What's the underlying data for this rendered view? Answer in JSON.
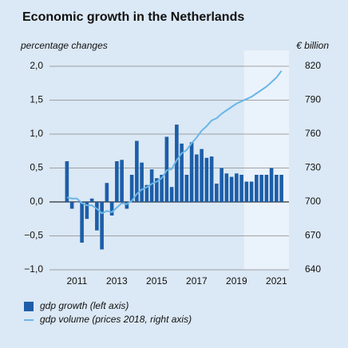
{
  "chart_data": {
    "type": "bar_line",
    "title": "Economic growth in the Netherlands",
    "y_label": "percentage changes",
    "y2_label": "€ billion",
    "categories": [
      null,
      null,
      null,
      null,
      null,
      "2011",
      null,
      null,
      null,
      null,
      null,
      null,
      null,
      "2013",
      null,
      null,
      null,
      null,
      null,
      null,
      null,
      "2015",
      null,
      null,
      null,
      null,
      null,
      null,
      null,
      "2017",
      null,
      null,
      null,
      null,
      null,
      null,
      null,
      "2019",
      null,
      null,
      null,
      null,
      null,
      null,
      null,
      "2021",
      null,
      null
    ],
    "series": [
      {
        "name": "gdp growth (left axis)",
        "type": "bar",
        "color": "#1c5ea8",
        "values": [
          null,
          null,
          null,
          0.6,
          -0.1,
          0.0,
          -0.6,
          -0.25,
          0.05,
          -0.42,
          -0.7,
          0.28,
          -0.2,
          0.6,
          0.62,
          -0.1,
          0.4,
          0.9,
          0.58,
          0.25,
          0.48,
          0.35,
          0.4,
          0.96,
          0.22,
          1.14,
          0.86,
          0.4,
          0.88,
          0.7,
          0.78,
          0.65,
          0.67,
          0.27,
          0.5,
          0.42,
          0.37,
          0.42,
          0.4,
          0.3,
          0.3,
          0.4,
          0.4,
          0.4,
          0.5,
          0.4,
          0.4,
          null
        ]
      },
      {
        "name": "gdp volume (prices 2018, right axis)",
        "type": "line",
        "axis": "y2",
        "color": "#6ab7e6",
        "values": [
          null,
          null,
          null,
          704,
          703,
          703,
          699,
          697,
          697,
          694,
          690,
          692,
          691,
          695,
          699,
          698,
          701,
          707,
          711,
          713,
          716,
          718,
          721,
          728,
          729,
          737,
          743,
          746,
          752,
          757,
          763,
          767,
          772,
          774,
          778,
          781,
          784,
          787,
          789,
          791,
          793,
          796,
          799,
          802,
          806,
          810,
          816,
          null
        ]
      }
    ],
    "ylim": [
      -1.0,
      2.0
    ],
    "yticks": [
      {
        "value": -1.0,
        "label": "−1,0"
      },
      {
        "value": -0.5,
        "label": "−0,5"
      },
      {
        "value": 0.0,
        "label": "0,0"
      },
      {
        "value": 0.5,
        "label": "0,5"
      },
      {
        "value": 1.0,
        "label": "1,0"
      },
      {
        "value": 1.5,
        "label": "1,5"
      },
      {
        "value": 2.0,
        "label": "2,0"
      }
    ],
    "y2lim": [
      640,
      820
    ],
    "y2ticks": [
      640,
      670,
      700,
      730,
      760,
      790,
      820
    ],
    "grid": true,
    "shade_from_category": 39,
    "legend": "bottom-left"
  }
}
